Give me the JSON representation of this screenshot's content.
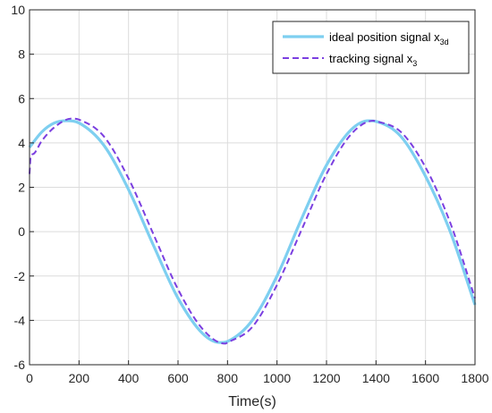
{
  "chart_data": {
    "type": "line",
    "title": "",
    "xlabel": "Time(s)",
    "ylabel": "",
    "xlim": [
      0,
      1800
    ],
    "ylim": [
      -6,
      10
    ],
    "xticks": [
      0,
      200,
      400,
      600,
      800,
      1000,
      1200,
      1400,
      1600,
      1800
    ],
    "yticks": [
      -6,
      -4,
      -2,
      0,
      2,
      4,
      6,
      8,
      10
    ],
    "xtick_labels": [
      "0",
      "200",
      "400",
      "600",
      "800",
      "1000",
      "1200",
      "1400",
      "1600",
      "1800"
    ],
    "ytick_labels": [
      "-6",
      "-4",
      "-2",
      "0",
      "2",
      "4",
      "6",
      "8",
      "10"
    ],
    "grid": true,
    "legend_position": "top-right",
    "series": [
      {
        "name": "ideal position signal x",
        "name_subscript": "3d",
        "color": "#7ecff0",
        "style": "solid",
        "x": [
          0,
          50,
          100,
          150,
          200,
          300,
          400,
          500,
          600,
          700,
          770,
          800,
          900,
          1000,
          1100,
          1200,
          1300,
          1370,
          1400,
          1500,
          1600,
          1700,
          1800
        ],
        "y": [
          3.8,
          4.5,
          4.9,
          5.0,
          4.9,
          3.9,
          1.9,
          -0.6,
          -3.0,
          -4.6,
          -5.0,
          -4.95,
          -4.0,
          -2.0,
          0.6,
          3.0,
          4.6,
          5.0,
          4.97,
          4.3,
          2.5,
          0.0,
          -3.3
        ]
      },
      {
        "name": "tracking signal x",
        "name_subscript": "3",
        "color": "#7b3fe0",
        "style": "dashed",
        "x": [
          0,
          5,
          15,
          50,
          100,
          170,
          200,
          300,
          400,
          500,
          600,
          700,
          790,
          800,
          900,
          1000,
          1100,
          1200,
          1300,
          1390,
          1400,
          1500,
          1600,
          1700,
          1800
        ],
        "y": [
          2.6,
          3.4,
          3.5,
          4.1,
          4.7,
          5.1,
          5.05,
          4.3,
          2.4,
          -0.1,
          -2.6,
          -4.4,
          -5.05,
          -5.0,
          -4.3,
          -2.4,
          0.1,
          2.6,
          4.4,
          5.0,
          4.98,
          4.5,
          2.9,
          0.4,
          -3.0
        ]
      }
    ]
  }
}
